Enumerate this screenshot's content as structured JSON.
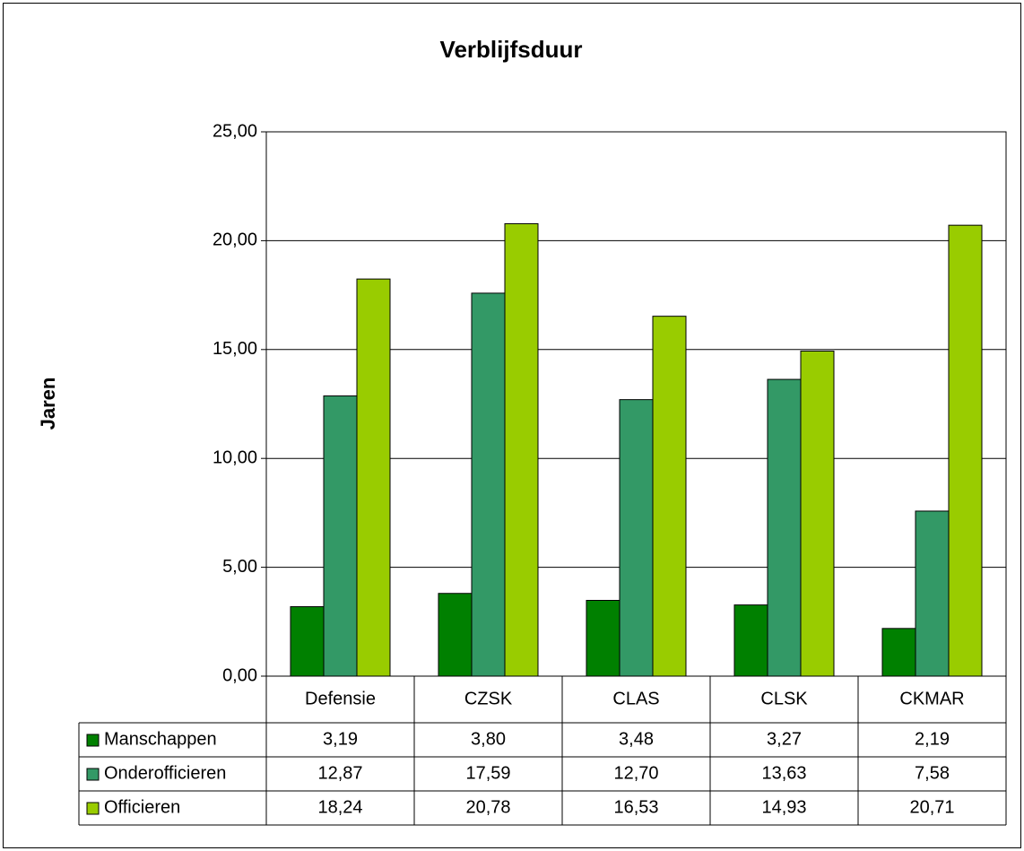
{
  "chart_data": {
    "type": "bar",
    "title": "Verblijfsduur",
    "y_label": "Jaren",
    "categories": [
      "Defensie",
      "CZSK",
      "CLAS",
      "CLSK",
      "CKMAR"
    ],
    "series": [
      {
        "name": "Manschappen",
        "color": "#008000",
        "values": [
          3.19,
          3.8,
          3.48,
          3.27,
          2.19
        ],
        "value_labels": [
          "3,19",
          "3,80",
          "3,48",
          "3,27",
          "2,19"
        ]
      },
      {
        "name": "Onderofficieren",
        "color": "#339966",
        "values": [
          12.87,
          17.59,
          12.7,
          13.63,
          7.58
        ],
        "value_labels": [
          "12,87",
          "17,59",
          "12,70",
          "13,63",
          "7,58"
        ]
      },
      {
        "name": "Officieren",
        "color": "#99cc00",
        "values": [
          18.24,
          20.78,
          16.53,
          14.93,
          20.71
        ],
        "value_labels": [
          "18,24",
          "20,78",
          "16,53",
          "14,93",
          "20,71"
        ]
      }
    ],
    "ylim": [
      0,
      25
    ],
    "yticks": [
      {
        "value": 0,
        "label": "0,00"
      },
      {
        "value": 5,
        "label": "5,00"
      },
      {
        "value": 10,
        "label": "10,00"
      },
      {
        "value": 15,
        "label": "15,00"
      },
      {
        "value": 20,
        "label": "20,00"
      },
      {
        "value": 25,
        "label": "25,00"
      }
    ],
    "grid": true,
    "data_table": true
  }
}
